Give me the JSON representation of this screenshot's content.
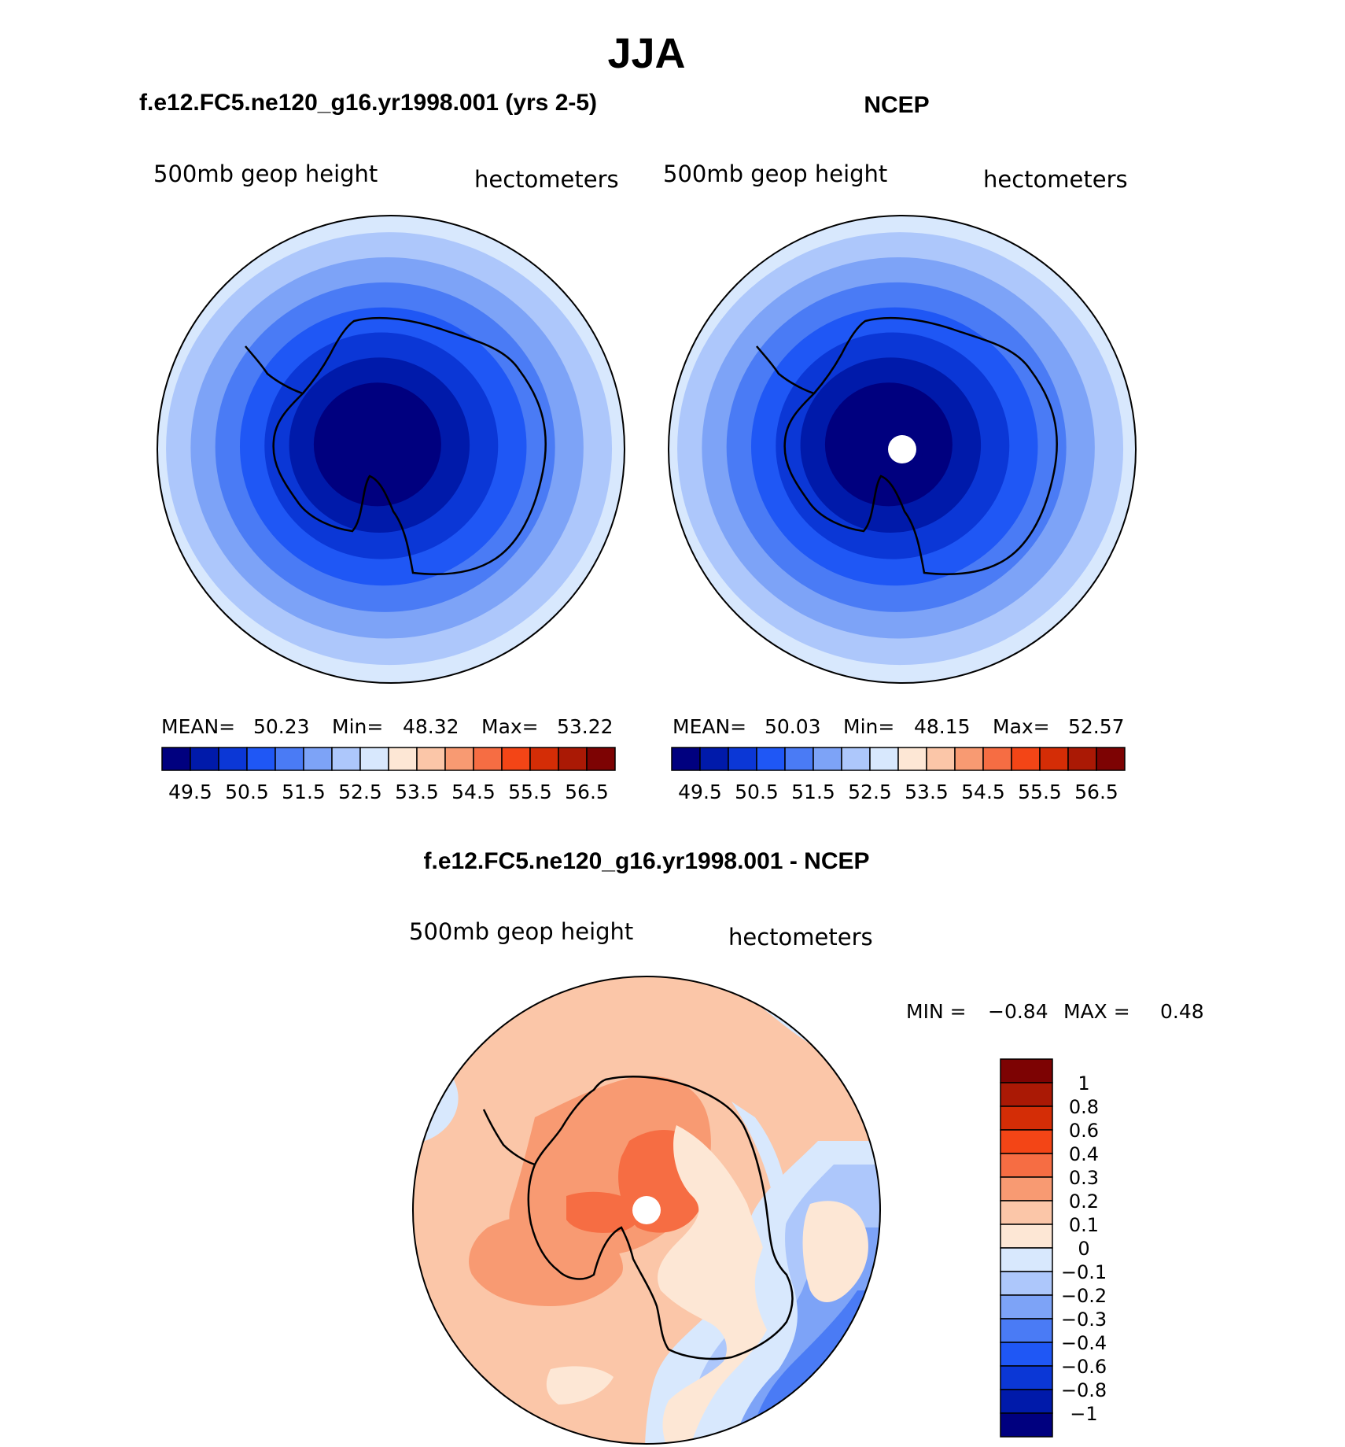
{
  "title": "JJA",
  "panels": [
    {
      "header": "f.e12.FC5.ne120_g16.yr1998.001 (yrs 2-5)",
      "left_label": "500mb  geop  height",
      "right_label": "hectometers",
      "stats": [
        {
          "label": "MEAN=",
          "value": "50.23"
        },
        {
          "label": "Min=",
          "value": "48.32"
        },
        {
          "label": "Max=",
          "value": "53.22"
        }
      ],
      "polar_hole": false,
      "level_index_by_ring": [
        0,
        0,
        1,
        2,
        3,
        4,
        5,
        6,
        7
      ]
    },
    {
      "header": "NCEP",
      "left_label": "500mb  geop  height",
      "right_label": "hectometers",
      "stats": [
        {
          "label": "MEAN=",
          "value": "50.03"
        },
        {
          "label": "Min=",
          "value": "48.15"
        },
        {
          "label": "Max=",
          "value": "52.57"
        }
      ],
      "polar_hole": true,
      "level_index_by_ring": [
        0,
        0,
        1,
        2,
        3,
        4,
        5,
        6,
        7
      ]
    }
  ],
  "colorbar_top": {
    "colors": [
      "#00007f",
      "#001aaa",
      "#0b37d6",
      "#1f57f5",
      "#4a7bf5",
      "#7da3f7",
      "#adc7fb",
      "#d8e8fd",
      "#fde7d5",
      "#fbc6a8",
      "#f89a72",
      "#f66d43",
      "#f34516",
      "#d42d06",
      "#aa1905",
      "#7d0303"
    ],
    "tick_labels": [
      "49.5",
      "50.5",
      "51.5",
      "52.5",
      "53.5",
      "54.5",
      "55.5",
      "56.5"
    ]
  },
  "diff_panel": {
    "header": "f.e12.FC5.ne120_g16.yr1998.001 - NCEP",
    "left_label": "500mb  geop  height",
    "right_label": "hectometers",
    "min_label": "MIN =",
    "min_value": "−0.84",
    "max_label": "MAX =",
    "max_value": "0.48"
  },
  "colorbar_diff": {
    "colors": [
      "#7d0303",
      "#aa1905",
      "#d42d06",
      "#f34516",
      "#f66d43",
      "#f89a72",
      "#fbc6a8",
      "#fde7d5",
      "#d8e8fd",
      "#adc7fb",
      "#7da3f7",
      "#4a7bf5",
      "#1f57f5",
      "#0b37d6",
      "#001aaa",
      "#00007f"
    ],
    "tick_labels": [
      "1",
      "0.8",
      "0.6",
      "0.4",
      "0.3",
      "0.2",
      "0.1",
      "0",
      "−0.1",
      "−0.2",
      "−0.3",
      "−0.4",
      "−0.6",
      "−0.8",
      "−1"
    ]
  },
  "chart_data": [
    {
      "type": "heatmap",
      "title": "f.e12.FC5.ne120_g16.yr1998.001 (yrs 2-5)",
      "field": "500mb geop height",
      "units": "hectometers",
      "season": "JJA",
      "mean": 50.23,
      "min": 48.32,
      "max": 53.22,
      "levels": [
        49.5,
        50,
        50.5,
        51,
        51.5,
        52,
        52.5,
        53,
        53.5,
        54,
        54.5,
        55,
        55.5,
        56,
        56.5
      ]
    },
    {
      "type": "heatmap",
      "title": "NCEP",
      "field": "500mb geop height",
      "units": "hectometers",
      "season": "JJA",
      "mean": 50.03,
      "min": 48.15,
      "max": 52.57,
      "levels": [
        49.5,
        50,
        50.5,
        51,
        51.5,
        52,
        52.5,
        53,
        53.5,
        54,
        54.5,
        55,
        55.5,
        56,
        56.5
      ]
    },
    {
      "type": "heatmap",
      "title": "f.e12.FC5.ne120_g16.yr1998.001 - NCEP",
      "field": "500mb geop height",
      "units": "hectometers",
      "min": -0.84,
      "max": 0.48,
      "levels": [
        -1,
        -0.8,
        -0.6,
        -0.4,
        -0.3,
        -0.2,
        -0.1,
        0,
        0.1,
        0.2,
        0.3,
        0.4,
        0.6,
        0.8,
        1
      ]
    }
  ]
}
